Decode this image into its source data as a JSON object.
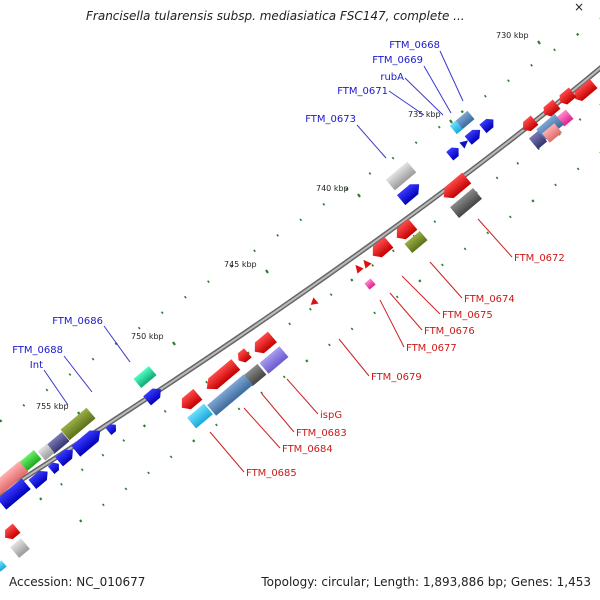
{
  "header": {
    "title": "Francisella tularensis subsp. mediasiatica FSC147, complete ...",
    "close_label": "×"
  },
  "footer": {
    "accession": "Accession: NC_010677",
    "summary": "Topology: circular; Length: 1,893,886 bp; Genes: 1,453"
  },
  "map": {
    "ticks": [
      "730 kbp",
      "735 kbp",
      "740 kbp",
      "745 kbp",
      "750 kbp",
      "755 kbp"
    ],
    "forward_genes": [
      "FTM_0668",
      "FTM_0669",
      "rubA",
      "FTM_0671",
      "FTM_0673",
      "FTM_0686",
      "FTM_0688",
      "Int"
    ],
    "reverse_genes": [
      "FTM_0672",
      "FTM_0674",
      "FTM_0675",
      "FTM_0676",
      "FTM_0677",
      "FTM_0679",
      "ispG",
      "FTM_0683",
      "FTM_0684",
      "FTM_0685"
    ],
    "colors": {
      "forward_label": "#1a1acc",
      "reverse_label": "#cc1a1a",
      "backbone": "#888888",
      "tick_dot": "#2e7d2e"
    }
  }
}
